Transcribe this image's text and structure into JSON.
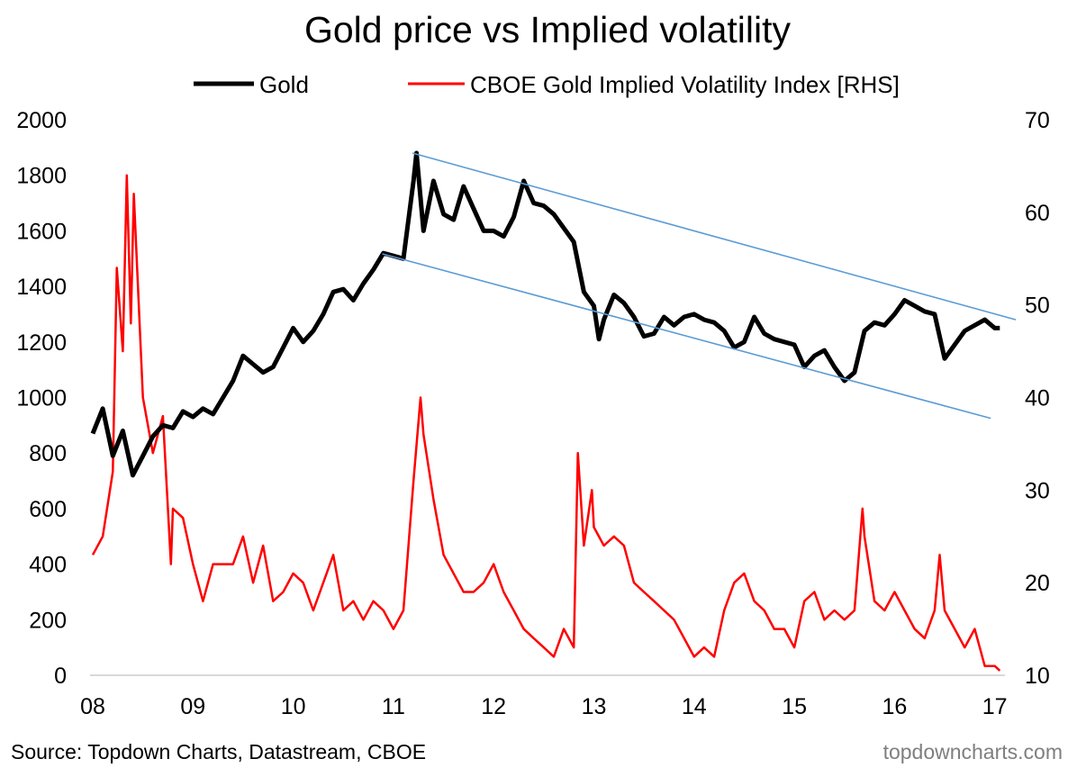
{
  "chart_data": {
    "type": "line",
    "title": "Gold price vs Implied volatility",
    "legend_placement": "top",
    "x_ticks": [
      "08",
      "09",
      "10",
      "11",
      "12",
      "13",
      "14",
      "15",
      "16",
      "17"
    ],
    "x_tick_values": [
      2008,
      2009,
      2010,
      2011,
      2012,
      2013,
      2014,
      2015,
      2016,
      2017
    ],
    "xlim": [
      2008,
      2017.05
    ],
    "y_left": {
      "ylim": [
        0,
        2000
      ],
      "ticks": [
        "0",
        "200",
        "400",
        "600",
        "800",
        "1000",
        "1200",
        "1400",
        "1600",
        "1800",
        "2000"
      ]
    },
    "y_right": {
      "ylim": [
        10,
        70
      ],
      "ticks": [
        "10",
        "20",
        "30",
        "40",
        "50",
        "60",
        "70"
      ]
    },
    "grid": false,
    "series": [
      {
        "name": "Gold",
        "axis": "left",
        "color": "#000000",
        "points": [
          [
            2008.0,
            870
          ],
          [
            2008.1,
            960
          ],
          [
            2008.2,
            790
          ],
          [
            2008.3,
            880
          ],
          [
            2008.4,
            720
          ],
          [
            2008.5,
            790
          ],
          [
            2008.6,
            860
          ],
          [
            2008.7,
            900
          ],
          [
            2008.8,
            890
          ],
          [
            2008.9,
            950
          ],
          [
            2009.0,
            930
          ],
          [
            2009.1,
            960
          ],
          [
            2009.2,
            940
          ],
          [
            2009.3,
            1000
          ],
          [
            2009.4,
            1060
          ],
          [
            2009.5,
            1150
          ],
          [
            2009.6,
            1120
          ],
          [
            2009.7,
            1090
          ],
          [
            2009.8,
            1110
          ],
          [
            2009.9,
            1180
          ],
          [
            2010.0,
            1250
          ],
          [
            2010.1,
            1200
          ],
          [
            2010.2,
            1240
          ],
          [
            2010.3,
            1300
          ],
          [
            2010.4,
            1380
          ],
          [
            2010.5,
            1390
          ],
          [
            2010.6,
            1350
          ],
          [
            2010.7,
            1410
          ],
          [
            2010.8,
            1460
          ],
          [
            2010.9,
            1520
          ],
          [
            2011.0,
            1510
          ],
          [
            2011.1,
            1500
          ],
          [
            2011.2,
            1780
          ],
          [
            2011.23,
            1880
          ],
          [
            2011.3,
            1600
          ],
          [
            2011.4,
            1780
          ],
          [
            2011.5,
            1660
          ],
          [
            2011.6,
            1640
          ],
          [
            2011.7,
            1760
          ],
          [
            2011.8,
            1680
          ],
          [
            2011.9,
            1600
          ],
          [
            2012.0,
            1600
          ],
          [
            2012.1,
            1580
          ],
          [
            2012.2,
            1650
          ],
          [
            2012.3,
            1780
          ],
          [
            2012.4,
            1700
          ],
          [
            2012.5,
            1690
          ],
          [
            2012.6,
            1660
          ],
          [
            2012.7,
            1610
          ],
          [
            2012.8,
            1560
          ],
          [
            2012.9,
            1380
          ],
          [
            2013.0,
            1330
          ],
          [
            2013.05,
            1210
          ],
          [
            2013.1,
            1280
          ],
          [
            2013.2,
            1370
          ],
          [
            2013.3,
            1340
          ],
          [
            2013.4,
            1290
          ],
          [
            2013.5,
            1220
          ],
          [
            2013.6,
            1230
          ],
          [
            2013.7,
            1290
          ],
          [
            2013.8,
            1260
          ],
          [
            2013.9,
            1290
          ],
          [
            2014.0,
            1300
          ],
          [
            2014.1,
            1280
          ],
          [
            2014.2,
            1270
          ],
          [
            2014.3,
            1240
          ],
          [
            2014.4,
            1180
          ],
          [
            2014.5,
            1200
          ],
          [
            2014.6,
            1290
          ],
          [
            2014.7,
            1230
          ],
          [
            2014.8,
            1210
          ],
          [
            2014.9,
            1200
          ],
          [
            2015.0,
            1190
          ],
          [
            2015.1,
            1110
          ],
          [
            2015.2,
            1150
          ],
          [
            2015.3,
            1170
          ],
          [
            2015.4,
            1110
          ],
          [
            2015.5,
            1060
          ],
          [
            2015.6,
            1090
          ],
          [
            2015.7,
            1240
          ],
          [
            2015.8,
            1270
          ],
          [
            2015.9,
            1260
          ],
          [
            2016.0,
            1300
          ],
          [
            2016.1,
            1350
          ],
          [
            2016.2,
            1330
          ],
          [
            2016.3,
            1310
          ],
          [
            2016.4,
            1300
          ],
          [
            2016.5,
            1140
          ],
          [
            2016.6,
            1190
          ],
          [
            2016.7,
            1240
          ],
          [
            2016.8,
            1260
          ],
          [
            2016.9,
            1280
          ],
          [
            2017.0,
            1250
          ],
          [
            2017.05,
            1250
          ]
        ]
      },
      {
        "name": "CBOE Gold Implied Volatility Index [RHS]",
        "axis": "right",
        "color": "#ff0000",
        "points": [
          [
            2008.0,
            23
          ],
          [
            2008.1,
            25
          ],
          [
            2008.2,
            32
          ],
          [
            2008.24,
            54
          ],
          [
            2008.3,
            45
          ],
          [
            2008.34,
            64
          ],
          [
            2008.38,
            48
          ],
          [
            2008.41,
            62
          ],
          [
            2008.5,
            40
          ],
          [
            2008.6,
            34
          ],
          [
            2008.7,
            38
          ],
          [
            2008.78,
            22
          ],
          [
            2008.8,
            28
          ],
          [
            2008.9,
            27
          ],
          [
            2009.0,
            22
          ],
          [
            2009.1,
            18
          ],
          [
            2009.2,
            22
          ],
          [
            2009.3,
            22
          ],
          [
            2009.4,
            22
          ],
          [
            2009.5,
            25
          ],
          [
            2009.6,
            20
          ],
          [
            2009.7,
            24
          ],
          [
            2009.8,
            18
          ],
          [
            2009.9,
            19
          ],
          [
            2010.0,
            21
          ],
          [
            2010.1,
            20
          ],
          [
            2010.2,
            17
          ],
          [
            2010.3,
            20
          ],
          [
            2010.4,
            23
          ],
          [
            2010.5,
            17
          ],
          [
            2010.6,
            18
          ],
          [
            2010.7,
            16
          ],
          [
            2010.8,
            18
          ],
          [
            2010.9,
            17
          ],
          [
            2011.0,
            15
          ],
          [
            2011.1,
            17
          ],
          [
            2011.2,
            31
          ],
          [
            2011.27,
            40
          ],
          [
            2011.3,
            36
          ],
          [
            2011.4,
            29
          ],
          [
            2011.5,
            23
          ],
          [
            2011.6,
            21
          ],
          [
            2011.7,
            19
          ],
          [
            2011.8,
            19
          ],
          [
            2011.9,
            20
          ],
          [
            2012.0,
            22
          ],
          [
            2012.1,
            19
          ],
          [
            2012.2,
            17
          ],
          [
            2012.3,
            15
          ],
          [
            2012.4,
            14
          ],
          [
            2012.5,
            13
          ],
          [
            2012.6,
            12
          ],
          [
            2012.7,
            15
          ],
          [
            2012.8,
            13
          ],
          [
            2012.84,
            34
          ],
          [
            2012.9,
            24
          ],
          [
            2012.98,
            30
          ],
          [
            2013.0,
            26
          ],
          [
            2013.1,
            24
          ],
          [
            2013.2,
            25
          ],
          [
            2013.3,
            24
          ],
          [
            2013.4,
            20
          ],
          [
            2013.5,
            19
          ],
          [
            2013.6,
            18
          ],
          [
            2013.7,
            17
          ],
          [
            2013.8,
            16
          ],
          [
            2013.9,
            14
          ],
          [
            2014.0,
            12
          ],
          [
            2014.1,
            13
          ],
          [
            2014.2,
            12
          ],
          [
            2014.3,
            17
          ],
          [
            2014.4,
            20
          ],
          [
            2014.5,
            21
          ],
          [
            2014.6,
            18
          ],
          [
            2014.7,
            17
          ],
          [
            2014.8,
            15
          ],
          [
            2014.9,
            15
          ],
          [
            2015.0,
            13
          ],
          [
            2015.1,
            18
          ],
          [
            2015.2,
            19
          ],
          [
            2015.3,
            16
          ],
          [
            2015.4,
            17
          ],
          [
            2015.5,
            16
          ],
          [
            2015.6,
            17
          ],
          [
            2015.68,
            28
          ],
          [
            2015.7,
            25
          ],
          [
            2015.8,
            18
          ],
          [
            2015.9,
            17
          ],
          [
            2016.0,
            19
          ],
          [
            2016.1,
            17
          ],
          [
            2016.2,
            15
          ],
          [
            2016.3,
            14
          ],
          [
            2016.4,
            17
          ],
          [
            2016.45,
            23
          ],
          [
            2016.5,
            17
          ],
          [
            2016.6,
            15
          ],
          [
            2016.7,
            13
          ],
          [
            2016.8,
            15
          ],
          [
            2016.9,
            11
          ],
          [
            2017.0,
            11
          ],
          [
            2017.05,
            10.5
          ]
        ]
      }
    ],
    "trend_lines": {
      "color": "#5b9bd5",
      "lines": [
        {
          "axis": "left",
          "from": [
            2011.19,
            1880
          ],
          "to": [
            2017.21,
            1280
          ]
        },
        {
          "axis": "left",
          "from": [
            2010.89,
            1517
          ],
          "to": [
            2016.96,
            925
          ]
        }
      ]
    }
  },
  "footer": {
    "source": "Source: Topdown Charts, Datastream, CBOE",
    "brand": "topdowncharts.com"
  }
}
